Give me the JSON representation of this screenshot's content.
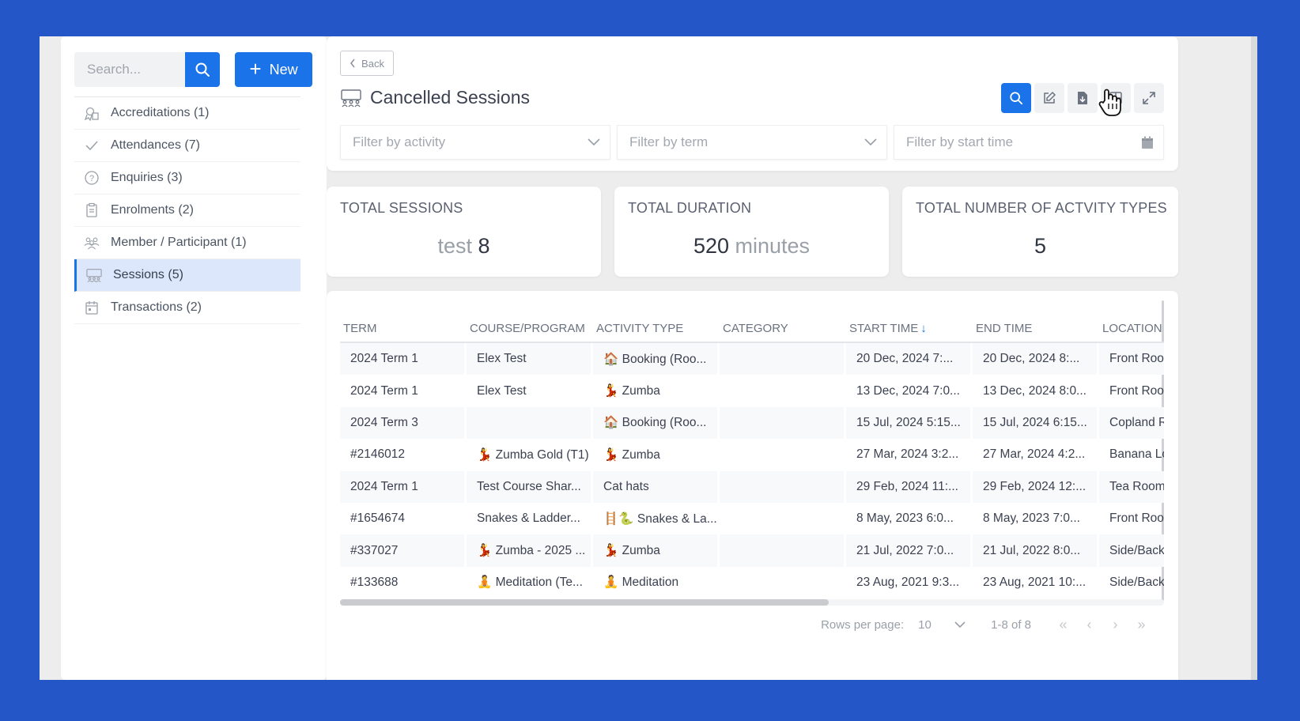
{
  "sidebar": {
    "search_placeholder": "Search...",
    "new_label": "New",
    "items": [
      {
        "label": "Accreditations (1)",
        "icon": "accreditation-icon",
        "active": false
      },
      {
        "label": "Attendances (7)",
        "icon": "check-icon",
        "active": false
      },
      {
        "label": "Enquiries (3)",
        "icon": "question-icon",
        "active": false
      },
      {
        "label": "Enrolments (2)",
        "icon": "clipboard-icon",
        "active": false
      },
      {
        "label": "Member / Participant (1)",
        "icon": "people-icon",
        "active": false
      },
      {
        "label": "Sessions (5)",
        "icon": "sessions-icon",
        "active": true
      },
      {
        "label": "Transactions (2)",
        "icon": "calendar-icon",
        "active": false
      }
    ]
  },
  "header": {
    "back_label": "Back",
    "title": "Cancelled Sessions",
    "filters": {
      "activity": "Filter by activity",
      "term": "Filter by term",
      "start_time": "Filter by start time"
    }
  },
  "stats": [
    {
      "label": "TOTAL SESSIONS",
      "prefix": "test",
      "value": "8",
      "suffix": ""
    },
    {
      "label": "TOTAL DURATION",
      "prefix": "",
      "value": "520",
      "suffix": "minutes"
    },
    {
      "label": "TOTAL NUMBER OF ACTVITY TYPES",
      "prefix": "",
      "value": "5",
      "suffix": ""
    }
  ],
  "table": {
    "columns": [
      "TERM",
      "COURSE/PROGRAM",
      "ACTIVITY TYPE",
      "CATEGORY",
      "START TIME",
      "END TIME",
      "LOCATION"
    ],
    "sort_column": "START TIME",
    "rows": [
      [
        "2024 Term 1",
        "Elex Test",
        "🏠 Booking (Roo...",
        "",
        "20 Dec, 2024  7:...",
        "20 Dec, 2024  8:...",
        "Front Room"
      ],
      [
        "2024 Term 1",
        "Elex Test",
        "💃 Zumba",
        "",
        "13 Dec, 2024  7:0...",
        "13 Dec, 2024  8:0...",
        "Front Room"
      ],
      [
        "2024 Term 3",
        "",
        "🏠 Booking (Roo...",
        "",
        "15 Jul, 2024  5:15...",
        "15 Jul, 2024  6:15...",
        "Copland Room"
      ],
      [
        "#2146012",
        "💃 Zumba Gold (T1)",
        "💃 Zumba",
        "",
        "27 Mar, 2024  3:2...",
        "27 Mar, 2024  4:2...",
        "Banana Lounge"
      ],
      [
        "2024 Term 1",
        "Test Course Shar...",
        "Cat hats",
        "",
        "29 Feb, 2024  11:...",
        "29 Feb, 2024  12:...",
        "Tea Room"
      ],
      [
        "#1654674",
        "Snakes & Ladder...",
        "🪜🐍 Snakes & La...",
        "",
        "8 May, 2023  6:0...",
        "8 May, 2023  7:0...",
        "Front Room"
      ],
      [
        "#337027",
        "💃 Zumba - 2025 ...",
        "💃 Zumba",
        "",
        "21 Jul, 2022  7:0...",
        "21 Jul, 2022  8:0...",
        "Side/Back"
      ],
      [
        "#133688",
        "🧘 Meditation (Te...",
        "🧘 Meditation",
        "",
        "23 Aug, 2021  9:3...",
        "23 Aug, 2021  10:...",
        "Side/Back"
      ]
    ]
  },
  "pagination": {
    "rows_per_page_label": "Rows per page:",
    "rows_per_page": "10",
    "range": "1-8 of 8"
  }
}
